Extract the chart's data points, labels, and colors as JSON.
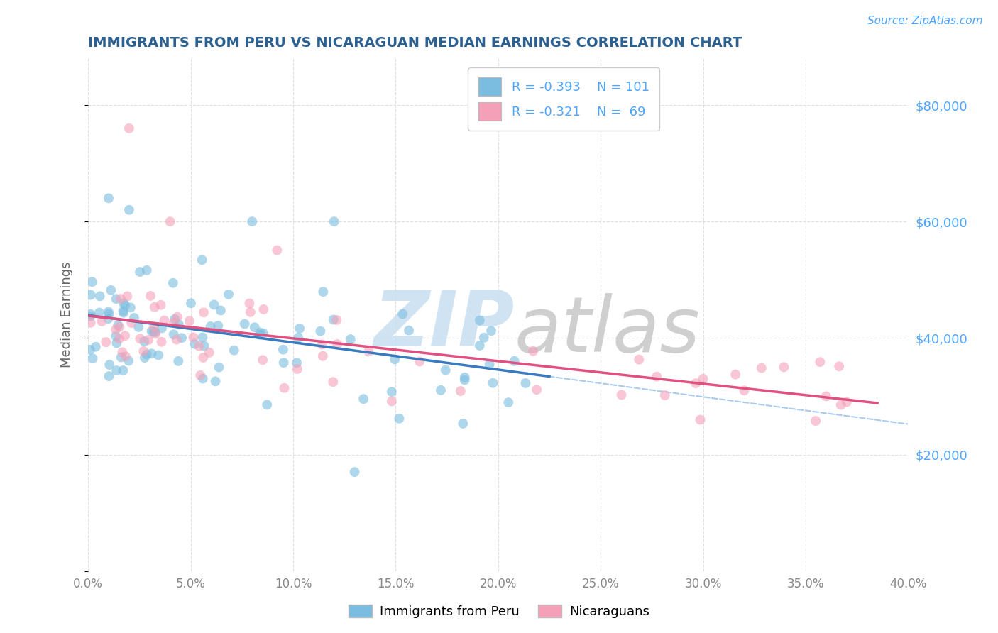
{
  "title": "IMMIGRANTS FROM PERU VS NICARAGUAN MEDIAN EARNINGS CORRELATION CHART",
  "source": "Source: ZipAtlas.com",
  "ylabel": "Median Earnings",
  "xlim": [
    0.0,
    0.4
  ],
  "ylim": [
    0,
    88000
  ],
  "yticks": [
    0,
    20000,
    40000,
    60000,
    80000
  ],
  "xticks": [
    0.0,
    0.05,
    0.1,
    0.15,
    0.2,
    0.25,
    0.3,
    0.35,
    0.4
  ],
  "series1_color": "#7bbde0",
  "series2_color": "#f4a0b8",
  "series1_label": "Immigrants from Peru",
  "series2_label": "Nicaraguans",
  "legend1_R": "R = -0.393",
  "legend1_N": "N = 101",
  "legend2_R": "R = -0.321",
  "legend2_N": "N =  69",
  "background_color": "#ffffff",
  "grid_color": "#e0e0e0",
  "grid_style": "--",
  "title_color": "#2c6090",
  "axis_label_color": "#666666",
  "tick_label_color_y": "#4da6ff",
  "tick_label_color_x": "#888888",
  "line1_color": "#3a7abf",
  "line2_color": "#e05080",
  "dashed_line_color": "#aaccee",
  "marker_size": 100,
  "marker_alpha": 0.6,
  "watermark_zip_color": "#c8dff0",
  "watermark_atlas_color": "#c0c0c0"
}
